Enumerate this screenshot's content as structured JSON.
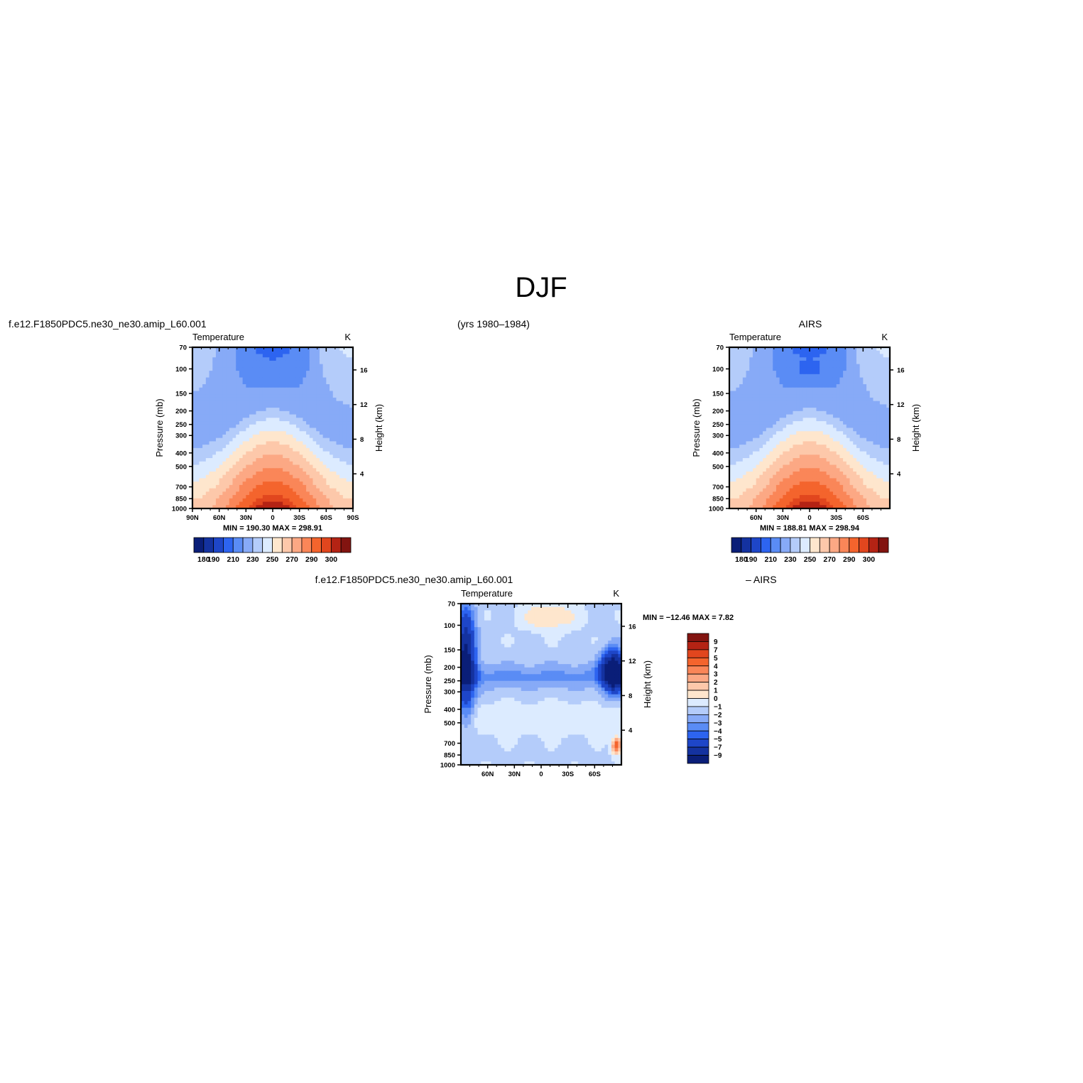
{
  "page": {
    "title": "DJF",
    "case_name": "f.e12.F1850PDC5.ne30_ne30.amip_L60.001",
    "years": "(yrs 1980–1984)",
    "obs_name": "AIRS",
    "diff_case": "f.e12.F1850PDC5.ne30_ne30.amip_L60.001",
    "diff_obs": "– AIRS"
  },
  "colors": {
    "abs_levels": [
      "#0a1e78",
      "#1432a0",
      "#1e46c8",
      "#2d64f0",
      "#5a8cf5",
      "#87aaf7",
      "#b4ccfa",
      "#dcebff",
      "#fee6cd",
      "#fdc8aa",
      "#fca884",
      "#fa8658",
      "#f4642d",
      "#e1461e",
      "#b42314",
      "#821410"
    ],
    "diff_levels": [
      "#0a1e78",
      "#1432a0",
      "#1e46c8",
      "#2d64f0",
      "#5a8cf5",
      "#87aaf7",
      "#b4ccfa",
      "#dcebff",
      "#fee6cd",
      "#fdc8aa",
      "#fca884",
      "#fa8658",
      "#f4642d",
      "#e1461e",
      "#b42314",
      "#821410"
    ]
  },
  "chart_data": [
    {
      "type": "heatmap",
      "name": "model",
      "title_left": "Temperature",
      "title_right": "K",
      "ylabel": "Pressure (mb)",
      "y2label": "Height (km)",
      "x_ticks": [
        "90N",
        "60N",
        "30N",
        "0",
        "30S",
        "60S",
        "90S"
      ],
      "y_ticks": [
        "70",
        "100",
        "150",
        "200",
        "250",
        "300",
        "400",
        "500",
        "700",
        "850",
        "1000"
      ],
      "y2_ticks": [
        "16",
        "12",
        "8",
        "4"
      ],
      "stats": "MIN = 190.30   MAX = 298.91",
      "colorbar_labels": [
        "180",
        "190",
        "210",
        "230",
        "250",
        "270",
        "290",
        "300"
      ],
      "min": 190.3,
      "max": 298.91
    },
    {
      "type": "heatmap",
      "name": "obs",
      "title_left": "Temperature",
      "title_right": "K",
      "ylabel": "Pressure (mb)",
      "y2label": "Height (km)",
      "x_ticks": [
        "60N",
        "30N",
        "0",
        "30S",
        "60S"
      ],
      "y_ticks": [
        "70",
        "100",
        "150",
        "200",
        "250",
        "300",
        "400",
        "500",
        "700",
        "850",
        "1000"
      ],
      "y2_ticks": [
        "16",
        "12",
        "8",
        "4"
      ],
      "stats": "MIN = 188.81   MAX = 298.94",
      "colorbar_labels": [
        "180",
        "190",
        "210",
        "230",
        "250",
        "270",
        "290",
        "300"
      ],
      "min": 188.81,
      "max": 298.94
    },
    {
      "type": "heatmap",
      "name": "difference",
      "title_left": "Temperature",
      "title_right": "K",
      "ylabel": "Pressure (mb)",
      "y2label": "Height (km)",
      "x_ticks": [
        "60N",
        "30N",
        "0",
        "30S",
        "60S"
      ],
      "y_ticks": [
        "70",
        "100",
        "150",
        "200",
        "250",
        "300",
        "400",
        "500",
        "700",
        "850",
        "1000"
      ],
      "y2_ticks": [
        "16",
        "12",
        "8",
        "4"
      ],
      "stats": "MIN = −12.46   MAX =     7.82",
      "colorbar_labels": [
        "9",
        "7",
        "5",
        "4",
        "3",
        "2",
        "1",
        "0",
        "−1",
        "−2",
        "−3",
        "−4",
        "−5",
        "−7",
        "−9"
      ],
      "min": -12.46,
      "max": 7.82
    }
  ]
}
